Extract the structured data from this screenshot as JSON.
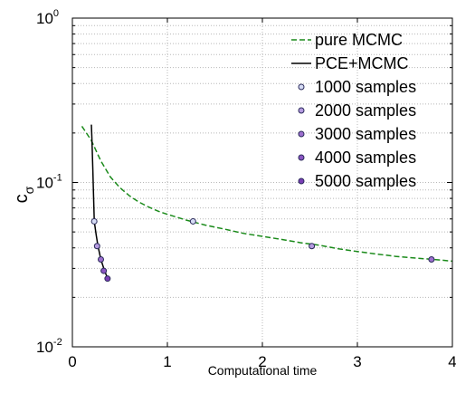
{
  "chart_data": {
    "type": "line",
    "xlabel": "Computational time",
    "ylabel": "c",
    "ylabel_subscript": "σ",
    "xlim": [
      0,
      4
    ],
    "ylim": [
      0.01,
      1
    ],
    "yscale": "log",
    "grid": true,
    "legend_position": "top-right",
    "xticks": [
      "0",
      "1",
      "2",
      "3",
      "4"
    ],
    "yticks": [
      {
        "base": "10",
        "exp": "-2",
        "value": 0.01
      },
      {
        "base": "10",
        "exp": "-1",
        "value": 0.1
      },
      {
        "base": "10",
        "exp": "0",
        "value": 1
      }
    ],
    "series": [
      {
        "name": "pure MCMC",
        "color": "#1a8a1a",
        "style": "dashed",
        "x": [
          0.1,
          0.2,
          0.3,
          0.4,
          0.5,
          0.6,
          0.7,
          0.8,
          0.9,
          1.0,
          1.2,
          1.4,
          1.6,
          1.8,
          2.0,
          2.2,
          2.4,
          2.6,
          2.8,
          3.0,
          3.2,
          3.4,
          3.6,
          3.8,
          4.0
        ],
        "y": [
          0.22,
          0.18,
          0.135,
          0.108,
          0.093,
          0.083,
          0.076,
          0.071,
          0.067,
          0.064,
          0.059,
          0.055,
          0.052,
          0.049,
          0.047,
          0.045,
          0.043,
          0.0415,
          0.0395,
          0.038,
          0.0367,
          0.0355,
          0.0347,
          0.034,
          0.0332
        ]
      },
      {
        "name": "PCE+MCMC",
        "color": "#000000",
        "style": "solid",
        "x": [
          0.2,
          0.205,
          0.21,
          0.215,
          0.22,
          0.225,
          0.23,
          0.25,
          0.27,
          0.3,
          0.33,
          0.36,
          0.38
        ],
        "y": [
          0.225,
          0.19,
          0.155,
          0.12,
          0.095,
          0.076,
          0.058,
          0.048,
          0.041,
          0.034,
          0.03,
          0.027,
          0.026
        ]
      }
    ],
    "markers": [
      {
        "name": "1000 samples",
        "color": "#d6dcf5",
        "points": [
          [
            0.23,
            0.058
          ],
          [
            1.27,
            0.058
          ]
        ]
      },
      {
        "name": "2000 samples",
        "color": "#b59be0",
        "points": [
          [
            0.26,
            0.041
          ],
          [
            2.52,
            0.041
          ]
        ]
      },
      {
        "name": "3000 samples",
        "color": "#9d6fcf",
        "points": [
          [
            0.3,
            0.034
          ],
          [
            3.78,
            0.034
          ]
        ]
      },
      {
        "name": "4000 samples",
        "color": "#8a55c2",
        "points": [
          [
            0.33,
            0.029
          ]
        ]
      },
      {
        "name": "5000 samples",
        "color": "#7a3fb5",
        "points": [
          [
            0.37,
            0.026
          ]
        ]
      }
    ]
  }
}
